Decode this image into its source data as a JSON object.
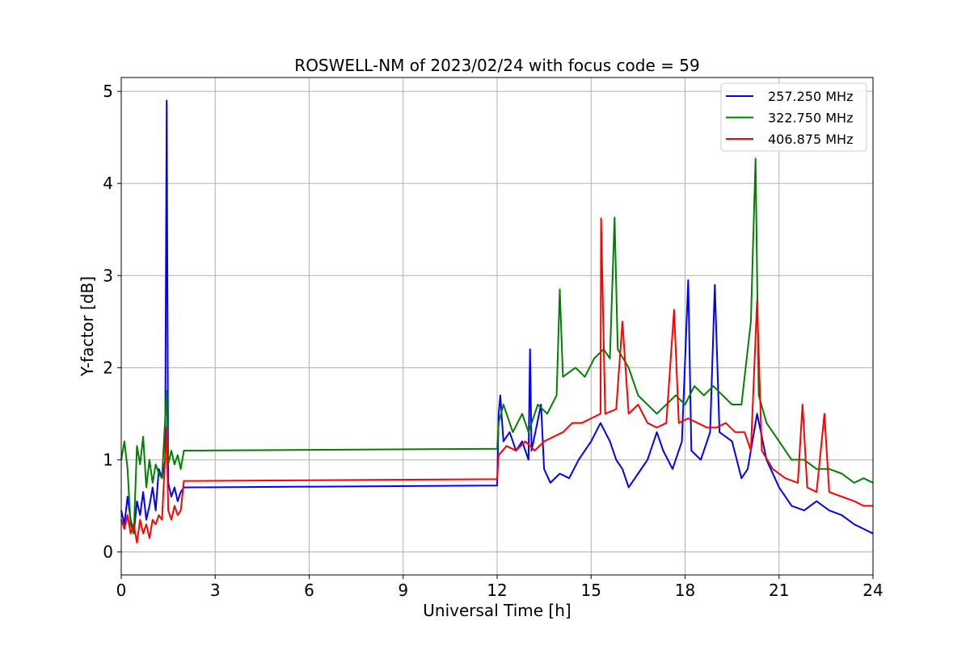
{
  "chart_data": {
    "type": "line",
    "title": "ROSWELL-NM of 2023/02/24 with focus code = 59",
    "xlabel": "Universal Time [h]",
    "ylabel": "Y-factor [dB]",
    "xlim": [
      0,
      24
    ],
    "ylim": [
      -0.25,
      5.15
    ],
    "xticks": [
      0,
      3,
      6,
      9,
      12,
      15,
      18,
      21,
      24
    ],
    "yticks": [
      0,
      1,
      2,
      3,
      4,
      5
    ],
    "grid": true,
    "legend_position": "top-right",
    "series": [
      {
        "name": "257.250 MHz",
        "color": "#0000ff",
        "points": [
          [
            0.0,
            0.45
          ],
          [
            0.1,
            0.3
          ],
          [
            0.2,
            0.6
          ],
          [
            0.3,
            0.35
          ],
          [
            0.4,
            0.2
          ],
          [
            0.5,
            0.55
          ],
          [
            0.6,
            0.4
          ],
          [
            0.7,
            0.65
          ],
          [
            0.8,
            0.35
          ],
          [
            0.9,
            0.5
          ],
          [
            1.0,
            0.7
          ],
          [
            1.1,
            0.45
          ],
          [
            1.2,
            0.9
          ],
          [
            1.3,
            0.8
          ],
          [
            1.4,
            1.0
          ],
          [
            1.45,
            4.9
          ],
          [
            1.5,
            0.75
          ],
          [
            1.6,
            0.6
          ],
          [
            1.7,
            0.7
          ],
          [
            1.8,
            0.55
          ],
          [
            1.9,
            0.65
          ],
          [
            2.0,
            0.7
          ],
          [
            12.0,
            0.72
          ],
          [
            12.05,
            1.5
          ],
          [
            12.1,
            1.7
          ],
          [
            12.2,
            1.2
          ],
          [
            12.4,
            1.3
          ],
          [
            12.6,
            1.1
          ],
          [
            12.8,
            1.2
          ],
          [
            13.0,
            1.0
          ],
          [
            13.05,
            2.2
          ],
          [
            13.1,
            1.1
          ],
          [
            13.4,
            1.6
          ],
          [
            13.5,
            0.9
          ],
          [
            13.7,
            0.75
          ],
          [
            14.0,
            0.85
          ],
          [
            14.3,
            0.8
          ],
          [
            14.6,
            1.0
          ],
          [
            15.0,
            1.2
          ],
          [
            15.3,
            1.4
          ],
          [
            15.6,
            1.2
          ],
          [
            15.8,
            1.0
          ],
          [
            16.0,
            0.9
          ],
          [
            16.2,
            0.7
          ],
          [
            16.5,
            0.85
          ],
          [
            16.8,
            1.0
          ],
          [
            17.1,
            1.3
          ],
          [
            17.3,
            1.1
          ],
          [
            17.6,
            0.9
          ],
          [
            17.9,
            1.2
          ],
          [
            18.1,
            2.95
          ],
          [
            18.2,
            1.1
          ],
          [
            18.5,
            1.0
          ],
          [
            18.8,
            1.3
          ],
          [
            18.95,
            2.9
          ],
          [
            19.1,
            1.3
          ],
          [
            19.5,
            1.2
          ],
          [
            19.8,
            0.8
          ],
          [
            20.0,
            0.9
          ],
          [
            20.3,
            1.5
          ],
          [
            20.6,
            1.0
          ],
          [
            21.0,
            0.7
          ],
          [
            21.4,
            0.5
          ],
          [
            21.8,
            0.45
          ],
          [
            22.2,
            0.55
          ],
          [
            22.6,
            0.45
          ],
          [
            23.0,
            0.4
          ],
          [
            23.4,
            0.3
          ],
          [
            23.7,
            0.25
          ],
          [
            24.0,
            0.2
          ]
        ]
      },
      {
        "name": "322.750 MHz",
        "color": "#008000",
        "points": [
          [
            0.0,
            1.0
          ],
          [
            0.1,
            1.2
          ],
          [
            0.2,
            0.9
          ],
          [
            0.3,
            0.3
          ],
          [
            0.4,
            0.2
          ],
          [
            0.5,
            1.15
          ],
          [
            0.6,
            0.95
          ],
          [
            0.7,
            1.25
          ],
          [
            0.8,
            0.7
          ],
          [
            0.9,
            1.0
          ],
          [
            1.0,
            0.75
          ],
          [
            1.1,
            0.95
          ],
          [
            1.2,
            0.85
          ],
          [
            1.3,
            0.8
          ],
          [
            1.45,
            1.75
          ],
          [
            1.5,
            0.95
          ],
          [
            1.6,
            1.1
          ],
          [
            1.7,
            0.95
          ],
          [
            1.8,
            1.05
          ],
          [
            1.9,
            0.9
          ],
          [
            2.0,
            1.1
          ],
          [
            12.0,
            1.12
          ],
          [
            12.05,
            1.4
          ],
          [
            12.2,
            1.6
          ],
          [
            12.5,
            1.3
          ],
          [
            12.8,
            1.5
          ],
          [
            13.0,
            1.3
          ],
          [
            13.3,
            1.6
          ],
          [
            13.6,
            1.5
          ],
          [
            13.9,
            1.7
          ],
          [
            14.0,
            2.85
          ],
          [
            14.1,
            1.9
          ],
          [
            14.5,
            2.0
          ],
          [
            14.8,
            1.9
          ],
          [
            15.1,
            2.1
          ],
          [
            15.4,
            2.2
          ],
          [
            15.6,
            2.1
          ],
          [
            15.75,
            3.63
          ],
          [
            15.85,
            2.2
          ],
          [
            16.2,
            2.0
          ],
          [
            16.5,
            1.7
          ],
          [
            16.8,
            1.6
          ],
          [
            17.1,
            1.5
          ],
          [
            17.4,
            1.6
          ],
          [
            17.7,
            1.7
          ],
          [
            18.0,
            1.6
          ],
          [
            18.3,
            1.8
          ],
          [
            18.6,
            1.7
          ],
          [
            18.9,
            1.8
          ],
          [
            19.2,
            1.7
          ],
          [
            19.5,
            1.6
          ],
          [
            19.8,
            1.6
          ],
          [
            20.1,
            2.5
          ],
          [
            20.25,
            4.27
          ],
          [
            20.35,
            1.7
          ],
          [
            20.6,
            1.4
          ],
          [
            21.0,
            1.2
          ],
          [
            21.4,
            1.0
          ],
          [
            21.8,
            1.0
          ],
          [
            22.2,
            0.9
          ],
          [
            22.6,
            0.9
          ],
          [
            23.0,
            0.85
          ],
          [
            23.4,
            0.75
          ],
          [
            23.7,
            0.8
          ],
          [
            24.0,
            0.75
          ]
        ]
      },
      {
        "name": "406.875 MHz",
        "color": "#ff0000",
        "points": [
          [
            0.0,
            0.35
          ],
          [
            0.1,
            0.25
          ],
          [
            0.2,
            0.4
          ],
          [
            0.3,
            0.2
          ],
          [
            0.4,
            0.3
          ],
          [
            0.5,
            0.1
          ],
          [
            0.6,
            0.35
          ],
          [
            0.7,
            0.2
          ],
          [
            0.8,
            0.3
          ],
          [
            0.9,
            0.15
          ],
          [
            1.0,
            0.35
          ],
          [
            1.1,
            0.3
          ],
          [
            1.2,
            0.4
          ],
          [
            1.3,
            0.35
          ],
          [
            1.45,
            1.35
          ],
          [
            1.5,
            0.45
          ],
          [
            1.6,
            0.35
          ],
          [
            1.7,
            0.5
          ],
          [
            1.8,
            0.4
          ],
          [
            1.9,
            0.45
          ],
          [
            2.0,
            0.77
          ],
          [
            12.0,
            0.79
          ],
          [
            12.05,
            1.05
          ],
          [
            12.3,
            1.15
          ],
          [
            12.6,
            1.1
          ],
          [
            12.9,
            1.2
          ],
          [
            13.2,
            1.1
          ],
          [
            13.5,
            1.2
          ],
          [
            13.8,
            1.25
          ],
          [
            14.1,
            1.3
          ],
          [
            14.4,
            1.4
          ],
          [
            14.7,
            1.4
          ],
          [
            15.0,
            1.45
          ],
          [
            15.3,
            1.5
          ],
          [
            15.32,
            3.62
          ],
          [
            15.45,
            1.5
          ],
          [
            15.8,
            1.55
          ],
          [
            16.0,
            2.5
          ],
          [
            16.2,
            1.5
          ],
          [
            16.5,
            1.6
          ],
          [
            16.8,
            1.4
          ],
          [
            17.1,
            1.35
          ],
          [
            17.4,
            1.4
          ],
          [
            17.65,
            2.63
          ],
          [
            17.8,
            1.4
          ],
          [
            18.1,
            1.45
          ],
          [
            18.4,
            1.4
          ],
          [
            18.7,
            1.35
          ],
          [
            19.0,
            1.35
          ],
          [
            19.3,
            1.4
          ],
          [
            19.6,
            1.3
          ],
          [
            19.9,
            1.3
          ],
          [
            20.1,
            1.1
          ],
          [
            20.3,
            2.73
          ],
          [
            20.45,
            1.1
          ],
          [
            20.8,
            0.9
          ],
          [
            21.2,
            0.8
          ],
          [
            21.6,
            0.75
          ],
          [
            21.75,
            1.6
          ],
          [
            21.9,
            0.7
          ],
          [
            22.2,
            0.65
          ],
          [
            22.45,
            1.5
          ],
          [
            22.6,
            0.65
          ],
          [
            23.0,
            0.6
          ],
          [
            23.4,
            0.55
          ],
          [
            23.7,
            0.5
          ],
          [
            24.0,
            0.5
          ]
        ]
      }
    ]
  }
}
